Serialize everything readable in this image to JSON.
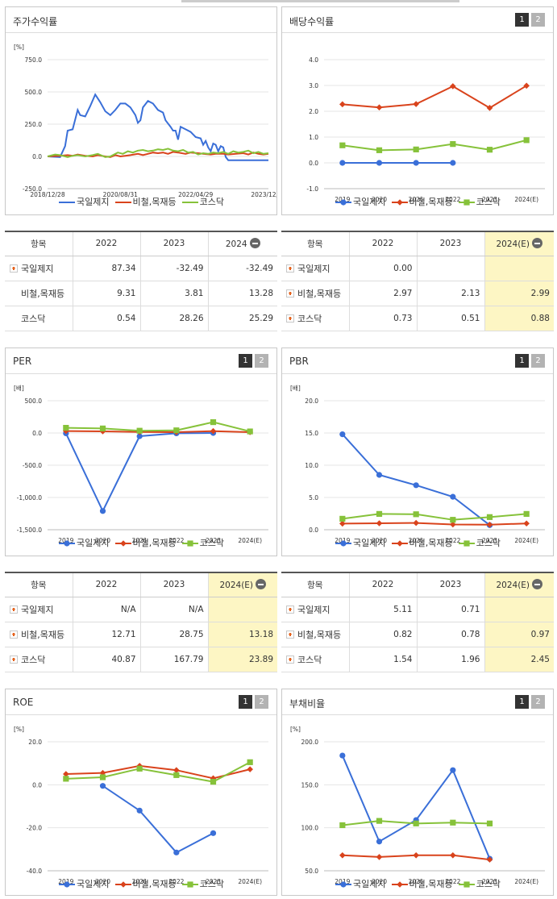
{
  "panels": [
    {
      "id": "stock",
      "title": "주가수익률"
    },
    {
      "id": "dividend",
      "title": "배당수익률"
    },
    {
      "id": "per",
      "title": "PER"
    },
    {
      "id": "pbr",
      "title": "PBR"
    },
    {
      "id": "roe",
      "title": "ROE"
    },
    {
      "id": "debt",
      "title": "부채비율"
    }
  ],
  "buttons": {
    "one": "1",
    "two": "2"
  },
  "legend": [
    "국일제지",
    "비철,목재등",
    "코스닥"
  ],
  "colors": {
    "s0": "#3a6fd8",
    "s1": "#d9431c",
    "s2": "#86c23a"
  },
  "tables": {
    "stock": {
      "headers": [
        "항목",
        "2022",
        "2023",
        "2024"
      ],
      "rows": [
        [
          "국일제지",
          "87.34",
          "-32.49",
          "-32.49"
        ],
        [
          "비철,목재등",
          "9.31",
          "3.81",
          "13.28"
        ],
        [
          "코스닥",
          "0.54",
          "28.26",
          "25.29"
        ]
      ]
    },
    "dividend": {
      "headers": [
        "항목",
        "2022",
        "2023",
        "2024(E)"
      ],
      "rows": [
        [
          "국일제지",
          "0.00",
          "",
          ""
        ],
        [
          "비철,목재등",
          "2.97",
          "2.13",
          "2.99"
        ],
        [
          "코스닥",
          "0.73",
          "0.51",
          "0.88"
        ]
      ]
    },
    "per": {
      "headers": [
        "항목",
        "2022",
        "2023",
        "2024(E)"
      ],
      "rows": [
        [
          "국일제지",
          "N/A",
          "N/A",
          ""
        ],
        [
          "비철,목재등",
          "12.71",
          "28.75",
          "13.18"
        ],
        [
          "코스닥",
          "40.87",
          "167.79",
          "23.89"
        ]
      ]
    },
    "pbr": {
      "headers": [
        "항목",
        "2022",
        "2023",
        "2024(E)"
      ],
      "rows": [
        [
          "국일제지",
          "5.11",
          "0.71",
          ""
        ],
        [
          "비철,목재등",
          "0.82",
          "0.78",
          "0.97"
        ],
        [
          "코스닥",
          "1.54",
          "1.96",
          "2.45"
        ]
      ]
    }
  },
  "chart_data": [
    {
      "id": "stock",
      "type": "line",
      "unit": "[%]",
      "yticks": [
        "750.0",
        "500.0",
        "250.0",
        "0.0",
        "-250.0"
      ],
      "ylim": [
        -250,
        750
      ],
      "xticks": [
        "2018/12/28",
        "2020/08/31",
        "2022/04/29",
        "2023/12/28"
      ],
      "series": [
        {
          "name": "국일제지",
          "points": [
            [
              0,
              0
            ],
            [
              3,
              -3
            ],
            [
              5,
              -5
            ],
            [
              7,
              80
            ],
            [
              8,
              200
            ],
            [
              10,
              210
            ],
            [
              12,
              360
            ],
            [
              13,
              320
            ],
            [
              15,
              310
            ],
            [
              17,
              390
            ],
            [
              19,
              480
            ],
            [
              21,
              420
            ],
            [
              23,
              350
            ],
            [
              25,
              320
            ],
            [
              27,
              360
            ],
            [
              29,
              410
            ],
            [
              31,
              410
            ],
            [
              33,
              380
            ],
            [
              35,
              320
            ],
            [
              36,
              260
            ],
            [
              37,
              280
            ],
            [
              38,
              380
            ],
            [
              40,
              430
            ],
            [
              42,
              410
            ],
            [
              44,
              360
            ],
            [
              46,
              340
            ],
            [
              47,
              280
            ],
            [
              49,
              230
            ],
            [
              50,
              200
            ],
            [
              51,
              200
            ],
            [
              52,
              130
            ],
            [
              53,
              230
            ],
            [
              55,
              210
            ],
            [
              57,
              190
            ],
            [
              59,
              150
            ],
            [
              61,
              140
            ],
            [
              62,
              90
            ],
            [
              63,
              120
            ],
            [
              64,
              70
            ],
            [
              65,
              40
            ],
            [
              66,
              100
            ],
            [
              67,
              90
            ],
            [
              68,
              40
            ],
            [
              69,
              80
            ],
            [
              70,
              70
            ],
            [
              71,
              -5
            ],
            [
              72,
              -30
            ],
            [
              74,
              -30
            ],
            [
              88,
              -30
            ]
          ]
        },
        {
          "name": "비철,목재등",
          "points": [
            [
              0,
              0
            ],
            [
              5,
              5
            ],
            [
              8,
              10
            ],
            [
              10,
              5
            ],
            [
              12,
              15
            ],
            [
              15,
              5
            ],
            [
              18,
              0
            ],
            [
              20,
              10
            ],
            [
              23,
              0
            ],
            [
              25,
              -5
            ],
            [
              27,
              10
            ],
            [
              29,
              0
            ],
            [
              31,
              5
            ],
            [
              33,
              10
            ],
            [
              36,
              20
            ],
            [
              38,
              10
            ],
            [
              40,
              20
            ],
            [
              42,
              30
            ],
            [
              44,
              25
            ],
            [
              46,
              30
            ],
            [
              48,
              20
            ],
            [
              50,
              35
            ],
            [
              52,
              30
            ],
            [
              55,
              20
            ],
            [
              57,
              30
            ],
            [
              60,
              25
            ],
            [
              62,
              20
            ],
            [
              65,
              15
            ],
            [
              67,
              20
            ],
            [
              70,
              20
            ],
            [
              72,
              15
            ],
            [
              75,
              20
            ],
            [
              78,
              25
            ],
            [
              80,
              15
            ],
            [
              82,
              30
            ],
            [
              84,
              20
            ],
            [
              86,
              15
            ],
            [
              88,
              20
            ]
          ]
        },
        {
          "name": "코스닥",
          "points": [
            [
              0,
              0
            ],
            [
              3,
              15
            ],
            [
              5,
              10
            ],
            [
              8,
              -5
            ],
            [
              10,
              5
            ],
            [
              12,
              10
            ],
            [
              15,
              0
            ],
            [
              18,
              10
            ],
            [
              20,
              20
            ],
            [
              23,
              -5
            ],
            [
              25,
              0
            ],
            [
              28,
              30
            ],
            [
              30,
              20
            ],
            [
              32,
              40
            ],
            [
              34,
              30
            ],
            [
              36,
              45
            ],
            [
              38,
              50
            ],
            [
              40,
              40
            ],
            [
              42,
              45
            ],
            [
              44,
              55
            ],
            [
              46,
              50
            ],
            [
              48,
              60
            ],
            [
              50,
              45
            ],
            [
              52,
              40
            ],
            [
              54,
              50
            ],
            [
              56,
              30
            ],
            [
              58,
              35
            ],
            [
              60,
              15
            ],
            [
              62,
              25
            ],
            [
              64,
              20
            ],
            [
              66,
              30
            ],
            [
              68,
              25
            ],
            [
              70,
              35
            ],
            [
              72,
              20
            ],
            [
              74,
              40
            ],
            [
              76,
              30
            ],
            [
              78,
              35
            ],
            [
              80,
              45
            ],
            [
              82,
              25
            ],
            [
              84,
              35
            ],
            [
              86,
              20
            ],
            [
              88,
              25
            ]
          ]
        }
      ]
    },
    {
      "id": "dividend",
      "type": "line",
      "unit": "",
      "yticks": [
        "4.0",
        "3.0",
        "2.0",
        "1.0",
        "0.0",
        "-1.0"
      ],
      "ylim": [
        -1,
        4
      ],
      "categories": [
        "2019",
        "2020",
        "2021",
        "2022",
        "2023",
        "2024(E)"
      ],
      "series": [
        {
          "name": "국일제지",
          "values": [
            0,
            0,
            0,
            0,
            null,
            null
          ]
        },
        {
          "name": "비철,목재등",
          "values": [
            2.27,
            2.15,
            2.28,
            2.97,
            2.13,
            2.99
          ]
        },
        {
          "name": "코스닥",
          "values": [
            0.68,
            0.49,
            0.52,
            0.73,
            0.51,
            0.88
          ]
        }
      ]
    },
    {
      "id": "per",
      "type": "line",
      "unit": "[배]",
      "yticks": [
        "500.0",
        "0.0",
        "-500.0",
        "-1,000.0",
        "-1,500.0"
      ],
      "ylim": [
        -1500,
        500
      ],
      "categories": [
        "2019",
        "2020",
        "2021",
        "2022",
        "2023",
        "2024(E)"
      ],
      "series": [
        {
          "name": "국일제지",
          "values": [
            -5,
            -1210,
            -50,
            -5,
            0,
            null
          ]
        },
        {
          "name": "비철,목재등",
          "values": [
            30,
            25,
            15,
            12.71,
            28.75,
            13.18
          ]
        },
        {
          "name": "코스닥",
          "values": [
            80,
            70,
            35,
            40.87,
            167.79,
            23.89
          ]
        }
      ]
    },
    {
      "id": "pbr",
      "type": "line",
      "unit": "[배]",
      "yticks": [
        "20.0",
        "15.0",
        "10.0",
        "5.0",
        "0.0"
      ],
      "ylim": [
        0,
        20
      ],
      "categories": [
        "2019",
        "2020",
        "2021",
        "2022",
        "2023",
        "2024(E)"
      ],
      "series": [
        {
          "name": "국일제지",
          "values": [
            14.8,
            8.5,
            6.9,
            5.11,
            0.71,
            null
          ]
        },
        {
          "name": "비철,목재등",
          "values": [
            0.95,
            1.0,
            1.05,
            0.82,
            0.78,
            0.97
          ]
        },
        {
          "name": "코스닥",
          "values": [
            1.7,
            2.45,
            2.4,
            1.54,
            1.96,
            2.45
          ]
        }
      ]
    },
    {
      "id": "roe",
      "type": "line",
      "unit": "[%]",
      "yticks": [
        "20.0",
        "0.0",
        "-20.0",
        "-40.0"
      ],
      "ylim": [
        -40,
        20
      ],
      "categories": [
        "2019",
        "2020",
        "2021",
        "2022",
        "2023",
        "2024(E)"
      ],
      "series": [
        {
          "name": "국일제지",
          "values": [
            null,
            -0.5,
            -12,
            -31.5,
            -22.5,
            null
          ]
        },
        {
          "name": "비철,목재등",
          "values": [
            5,
            5.5,
            8.8,
            6.8,
            3,
            7.2
          ]
        },
        {
          "name": "코스닥",
          "values": [
            2.8,
            3.5,
            7.5,
            4.5,
            1.4,
            10.5
          ]
        }
      ]
    },
    {
      "id": "debt",
      "type": "line",
      "unit": "[%]",
      "yticks": [
        "200.0",
        "150.0",
        "100.0",
        "50.0"
      ],
      "ylim": [
        50,
        200
      ],
      "categories": [
        "2019",
        "2020",
        "2021",
        "2022",
        "2023",
        "2024(E)"
      ],
      "series": [
        {
          "name": "국일제지",
          "values": [
            184,
            84,
            109,
            167,
            64,
            null
          ]
        },
        {
          "name": "비철,목재등",
          "values": [
            68,
            66,
            68,
            68,
            63,
            null
          ]
        },
        {
          "name": "코스닥",
          "values": [
            103,
            108,
            105,
            106,
            105,
            null
          ]
        }
      ]
    }
  ]
}
